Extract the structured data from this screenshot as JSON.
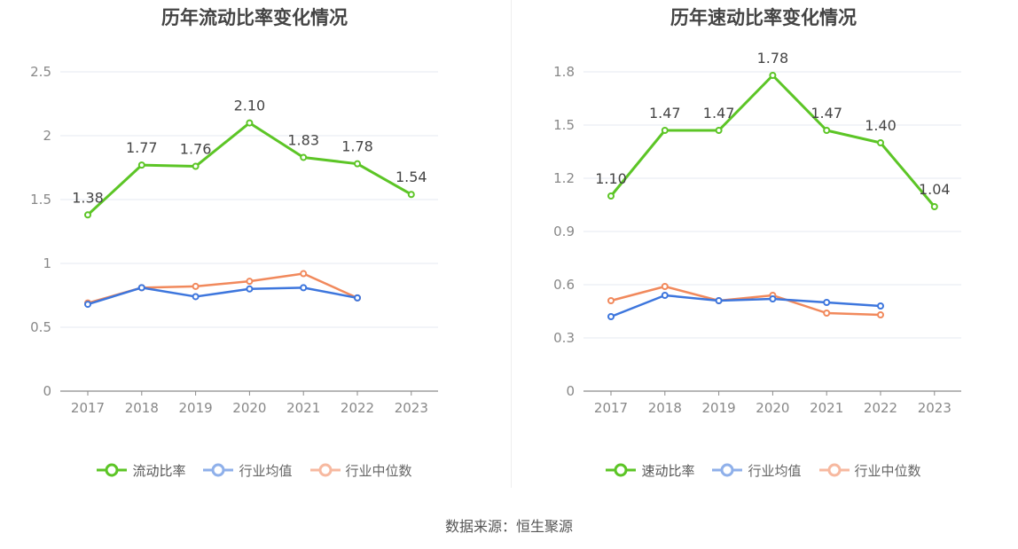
{
  "chart_data": [
    {
      "type": "line",
      "title": "历年流动比率变化情况",
      "categories": [
        "2017",
        "2018",
        "2019",
        "2020",
        "2021",
        "2022",
        "2023"
      ],
      "ylim": [
        0,
        2.5
      ],
      "yticks": [
        0,
        0.5,
        1,
        1.5,
        2,
        2.5
      ],
      "ytick_labels": [
        "0",
        "0.5",
        "1",
        "1.5",
        "2",
        "2.5"
      ],
      "grid": true,
      "legend_position": "bottom",
      "series": [
        {
          "name": "流动比率",
          "color": "#5cc526",
          "values": [
            1.38,
            1.77,
            1.76,
            2.1,
            1.83,
            1.78,
            1.54
          ],
          "labels": [
            "1.38",
            "1.77",
            "1.76",
            "2.10",
            "1.83",
            "1.78",
            "1.54"
          ],
          "show_labels": true
        },
        {
          "name": "行业均值",
          "color": "#3d76dd",
          "values": [
            0.68,
            0.81,
            0.74,
            0.8,
            0.81,
            0.73,
            null
          ],
          "show_labels": false
        },
        {
          "name": "行业中位数",
          "color": "#f1895c",
          "values": [
            0.69,
            0.81,
            0.82,
            0.86,
            0.92,
            0.73,
            null
          ],
          "show_labels": false
        }
      ]
    },
    {
      "type": "line",
      "title": "历年速动比率变化情况",
      "categories": [
        "2017",
        "2018",
        "2019",
        "2020",
        "2021",
        "2022",
        "2023"
      ],
      "ylim": [
        0,
        1.8
      ],
      "yticks": [
        0,
        0.3,
        0.6,
        0.9,
        1.2,
        1.5,
        1.8
      ],
      "ytick_labels": [
        "0",
        "0.3",
        "0.6",
        "0.9",
        "1.2",
        "1.5",
        "1.8"
      ],
      "grid": true,
      "legend_position": "bottom",
      "series": [
        {
          "name": "速动比率",
          "color": "#5cc526",
          "values": [
            1.1,
            1.47,
            1.47,
            1.78,
            1.47,
            1.4,
            1.04
          ],
          "labels": [
            "1.10",
            "1.47",
            "1.47",
            "1.78",
            "1.47",
            "1.40",
            "1.04"
          ],
          "show_labels": true
        },
        {
          "name": "行业均值",
          "color": "#3d76dd",
          "values": [
            0.42,
            0.54,
            0.51,
            0.52,
            0.5,
            0.48,
            null
          ],
          "show_labels": false
        },
        {
          "name": "行业中位数",
          "color": "#f1895c",
          "values": [
            0.51,
            0.59,
            0.51,
            0.54,
            0.44,
            0.43,
            null
          ],
          "show_labels": false
        }
      ]
    }
  ],
  "legend_colors": {
    "main": "#5cc526",
    "avg": "#8fb0ea",
    "median": "#f7b9a0"
  },
  "source": "数据来源：恒生聚源"
}
